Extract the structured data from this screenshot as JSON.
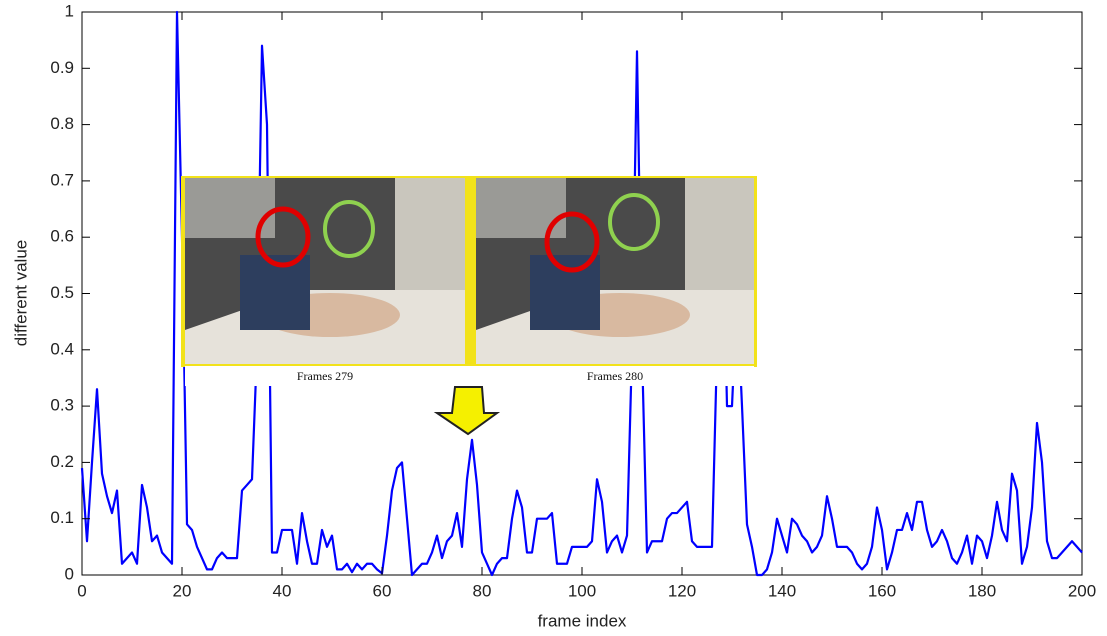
{
  "chart_data": {
    "type": "line",
    "xlabel": "frame index",
    "ylabel": "different value",
    "annotations": [
      "Frames 279",
      "Frames 280"
    ],
    "x": [
      0,
      1,
      2,
      3,
      4,
      5,
      6,
      7,
      8,
      9,
      10,
      11,
      12,
      13,
      14,
      15,
      16,
      17,
      18,
      19,
      20,
      21,
      22,
      23,
      24,
      25,
      26,
      27,
      28,
      29,
      30,
      31,
      32,
      33,
      34,
      35,
      36,
      37,
      38,
      39,
      40,
      41,
      42,
      43,
      44,
      45,
      46,
      47,
      48,
      49,
      50,
      51,
      52,
      53,
      54,
      55,
      56,
      57,
      58,
      59,
      60,
      61,
      62,
      63,
      64,
      65,
      66,
      67,
      68,
      69,
      70,
      71,
      72,
      73,
      74,
      75,
      76,
      77,
      78,
      79,
      80,
      81,
      82,
      83,
      84,
      85,
      86,
      87,
      88,
      89,
      90,
      91,
      92,
      93,
      94,
      95,
      96,
      97,
      98,
      99,
      100,
      101,
      102,
      103,
      104,
      105,
      106,
      107,
      108,
      109,
      110,
      111,
      112,
      113,
      114,
      115,
      116,
      117,
      118,
      119,
      120,
      121,
      122,
      123,
      124,
      125,
      126,
      127,
      128,
      129,
      130,
      131,
      132,
      133,
      134,
      135,
      136,
      137,
      138,
      139,
      140,
      141,
      142,
      143,
      144,
      145,
      146,
      147,
      148,
      149,
      150,
      151,
      152,
      153,
      154,
      155,
      156,
      157,
      158,
      159,
      160,
      161,
      162,
      163,
      164,
      165,
      166,
      167,
      168,
      169,
      170,
      171,
      172,
      173,
      174,
      175,
      176,
      177,
      178,
      179,
      180,
      181,
      182,
      183,
      184,
      185,
      186,
      187,
      188,
      189,
      190,
      191,
      192,
      193,
      194,
      195,
      196,
      197,
      198,
      199,
      200
    ],
    "series": [
      {
        "color": "#0000ff",
        "values": [
          0.19,
          0.06,
          0.2,
          0.33,
          0.18,
          0.14,
          0.11,
          0.15,
          0.02,
          0.03,
          0.04,
          0.02,
          0.16,
          0.12,
          0.06,
          0.07,
          0.04,
          0.03,
          0.02,
          1.0,
          0.6,
          0.09,
          0.08,
          0.05,
          0.03,
          0.01,
          0.01,
          0.03,
          0.04,
          0.03,
          0.03,
          0.03,
          0.15,
          0.16,
          0.17,
          0.4,
          0.94,
          0.8,
          0.04,
          0.04,
          0.08,
          0.08,
          0.08,
          0.02,
          0.11,
          0.06,
          0.02,
          0.02,
          0.08,
          0.05,
          0.07,
          0.01,
          0.01,
          0.02,
          0.005,
          0.02,
          0.01,
          0.02,
          0.02,
          0.01,
          0.003,
          0.07,
          0.15,
          0.19,
          0.2,
          0.1,
          0.0,
          0.01,
          0.02,
          0.02,
          0.04,
          0.07,
          0.03,
          0.06,
          0.07,
          0.11,
          0.05,
          0.17,
          0.24,
          0.16,
          0.04,
          0.02,
          0.0,
          0.02,
          0.03,
          0.03,
          0.1,
          0.15,
          0.12,
          0.04,
          0.04,
          0.1,
          0.1,
          0.1,
          0.11,
          0.02,
          0.02,
          0.02,
          0.05,
          0.05,
          0.05,
          0.05,
          0.06,
          0.17,
          0.13,
          0.04,
          0.06,
          0.07,
          0.04,
          0.07,
          0.4,
          0.93,
          0.4,
          0.04,
          0.06,
          0.06,
          0.06,
          0.1,
          0.11,
          0.11,
          0.12,
          0.13,
          0.06,
          0.05,
          0.05,
          0.05,
          0.05,
          0.4,
          0.7,
          0.3,
          0.3,
          0.5,
          0.3,
          0.09,
          0.05,
          0.0,
          0.0,
          0.01,
          0.04,
          0.1,
          0.07,
          0.04,
          0.1,
          0.09,
          0.07,
          0.06,
          0.04,
          0.05,
          0.07,
          0.14,
          0.1,
          0.05,
          0.05,
          0.05,
          0.04,
          0.02,
          0.01,
          0.02,
          0.05,
          0.12,
          0.08,
          0.01,
          0.04,
          0.08,
          0.08,
          0.11,
          0.08,
          0.13,
          0.13,
          0.08,
          0.05,
          0.06,
          0.08,
          0.06,
          0.03,
          0.02,
          0.04,
          0.07,
          0.02,
          0.07,
          0.06,
          0.03,
          0.07,
          0.13,
          0.08,
          0.06,
          0.18,
          0.15,
          0.02,
          0.05,
          0.12,
          0.27,
          0.2,
          0.06,
          0.03,
          0.03,
          0.04,
          0.05,
          0.06,
          0.05,
          0.04
        ]
      }
    ],
    "xlim": [
      0,
      200
    ],
    "xticks": [
      0,
      20,
      40,
      60,
      80,
      100,
      120,
      140,
      160,
      180,
      200
    ],
    "ylim": [
      0,
      1
    ],
    "yticks": [
      0,
      0.1,
      0.2,
      0.3,
      0.4,
      0.5,
      0.6,
      0.7,
      0.8,
      0.9,
      1
    ],
    "grid": false
  }
}
